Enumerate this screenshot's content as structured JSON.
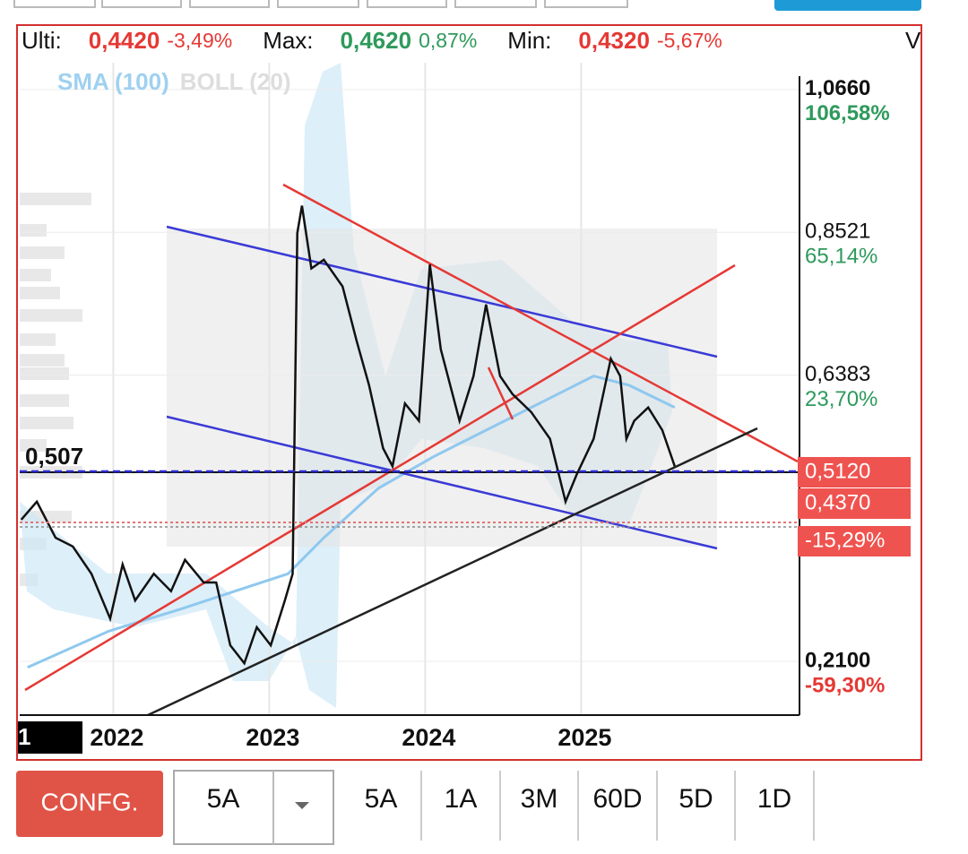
{
  "header": {
    "items": [
      {
        "label": "Ulti:",
        "value": "0,4420",
        "change": "-3,49%",
        "color": "#e53935"
      },
      {
        "label": "Max:",
        "value": "0,4620",
        "change": "0,87%",
        "color": "#2e9a5c"
      },
      {
        "label": "Min:",
        "value": "0,4320",
        "change": "-5,67%",
        "color": "#e53935"
      }
    ],
    "overflow": "V"
  },
  "chart_data": {
    "type": "line",
    "legend": [
      {
        "name": "SMA (100)",
        "color": "#9fd0f0"
      },
      {
        "name": "BOLL (20)",
        "color": "#dddddd"
      }
    ],
    "xlim": [
      2021.4,
      2026.4
    ],
    "xticks": [
      2022,
      2023,
      2024,
      2025
    ],
    "ylim": [
      0.1295,
      1.106
    ],
    "yticks": [
      {
        "value": 1.066,
        "label": "1,0660",
        "pct": "106,58%"
      },
      {
        "value": 0.8521,
        "label": "0,8521",
        "pct": "65,14%"
      },
      {
        "value": 0.6383,
        "label": "0,6383",
        "pct": "23,70%"
      },
      {
        "value": 0.21,
        "label": "0,2100",
        "pct": "-59,30%"
      }
    ],
    "grid": true,
    "series": [
      {
        "name": "SMA (100)",
        "color": "#8fc8ee",
        "x": [
          2021.45,
          2021.97,
          2022.43,
          2022.78,
          2023.12,
          2023.35,
          2023.7,
          2024.05,
          2024.51,
          2024.85,
          2025.08,
          2025.31,
          2025.6
        ],
        "values": [
          0.201,
          0.255,
          0.288,
          0.315,
          0.341,
          0.395,
          0.469,
          0.516,
          0.57,
          0.61,
          0.637,
          0.623,
          0.59
        ]
      }
    ],
    "price": {
      "color": "#111111",
      "x": [
        2021.41,
        2021.51,
        2021.63,
        2021.74,
        2021.86,
        2021.98,
        2022.06,
        2022.14,
        2022.26,
        2022.37,
        2022.46,
        2022.58,
        2022.66,
        2022.75,
        2022.84,
        2022.92,
        2023.01,
        2023.1,
        2023.15,
        2023.18,
        2023.21,
        2023.27,
        2023.35,
        2023.47,
        2023.56,
        2023.64,
        2023.73,
        2023.79,
        2023.87,
        2023.96,
        2024.03,
        2024.1,
        2024.22,
        2024.31,
        2024.39,
        2024.48,
        2024.56,
        2024.68,
        2024.8,
        2024.9,
        2024.97,
        2025.08,
        2025.19,
        2025.25,
        2025.29,
        2025.34,
        2025.43,
        2025.52,
        2025.6
      ],
      "values": [
        0.422,
        0.449,
        0.395,
        0.382,
        0.341,
        0.274,
        0.355,
        0.301,
        0.341,
        0.315,
        0.362,
        0.328,
        0.328,
        0.234,
        0.207,
        0.261,
        0.234,
        0.301,
        0.341,
        0.851,
        0.892,
        0.798,
        0.811,
        0.771,
        0.69,
        0.623,
        0.529,
        0.502,
        0.596,
        0.57,
        0.804,
        0.677,
        0.57,
        0.637,
        0.744,
        0.637,
        0.61,
        0.583,
        0.543,
        0.449,
        0.489,
        0.543,
        0.663,
        0.637,
        0.543,
        0.57,
        0.59,
        0.556,
        0.502
      ]
    },
    "level_left": "0,507",
    "price_tags": [
      "0,5120",
      "0,4370",
      "-15,29%"
    ],
    "corner": "1"
  },
  "toolbar": {
    "config": "CONFG.",
    "selected": "5A",
    "ranges": [
      "5A",
      "1A",
      "3M",
      "60D",
      "5D",
      "1D"
    ]
  }
}
